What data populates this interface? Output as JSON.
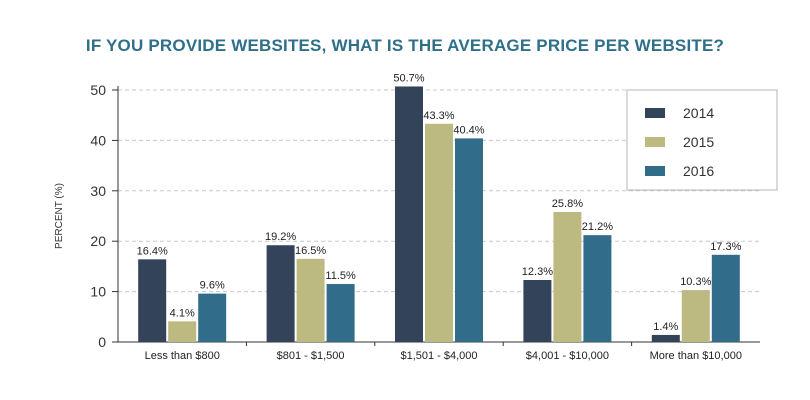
{
  "chart_data": {
    "type": "bar",
    "title": "IF YOU PROVIDE WEBSITES, WHAT IS THE AVERAGE PRICE PER WEBSITE?",
    "xlabel": "",
    "ylabel": "PERCENT (%)",
    "ylim": [
      0,
      50
    ],
    "yticks": [
      "0",
      "10",
      "20",
      "30",
      "40",
      "50"
    ],
    "grid": true,
    "legend_position": "top-right",
    "categories": [
      "Less than $800",
      "$801 - $1,500",
      "$1,501 - $4,000",
      "$4,001 - $10,000",
      "More than $10,000"
    ],
    "series": [
      {
        "name": "2014",
        "color": "#33445a",
        "values": [
          16.4,
          19.2,
          50.7,
          12.3,
          1.4
        ],
        "labels": [
          "16.4%",
          "19.2%",
          "50.7%",
          "12.3%",
          "1.4%"
        ]
      },
      {
        "name": "2015",
        "color": "#bdba81",
        "values": [
          4.1,
          16.5,
          43.3,
          25.8,
          10.3
        ],
        "labels": [
          "4.1%",
          "16.5%",
          "43.3%",
          "25.8%",
          "10.3%"
        ]
      },
      {
        "name": "2016",
        "color": "#316d8b",
        "values": [
          9.6,
          11.5,
          40.4,
          21.2,
          17.3
        ],
        "labels": [
          "9.6%",
          "11.5%",
          "40.4%",
          "21.2%",
          "17.3%"
        ]
      }
    ]
  }
}
